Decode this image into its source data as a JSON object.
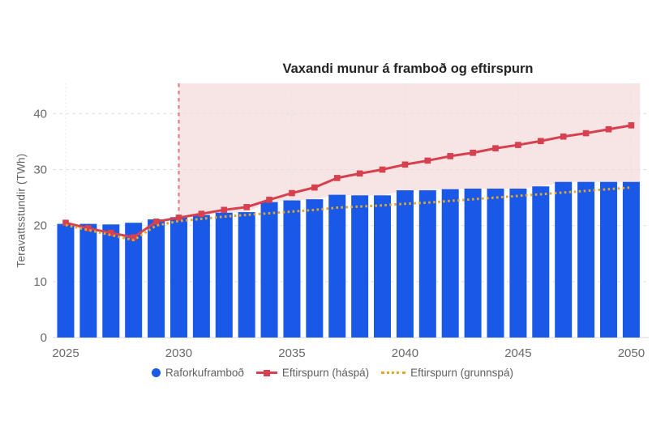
{
  "chart_data": {
    "type": "composite",
    "title": "Vaxandi munur á framboð og eftirspurn",
    "ylabel": "Teravattsstundir (TWh)",
    "xlabel": "",
    "categories": [
      2025,
      2026,
      2027,
      2028,
      2029,
      2030,
      2031,
      2032,
      2033,
      2034,
      2035,
      2036,
      2037,
      2038,
      2039,
      2040,
      2041,
      2042,
      2043,
      2044,
      2045,
      2046,
      2047,
      2048,
      2049,
      2050
    ],
    "series": [
      {
        "name": "Raforkuframboð",
        "type": "bar",
        "color": "#1a58e8",
        "values": [
          20.3,
          20.3,
          20.2,
          20.5,
          21.1,
          21.5,
          21.9,
          22.3,
          22.4,
          24.2,
          24.5,
          24.7,
          25.5,
          25.4,
          25.4,
          26.3,
          26.3,
          26.5,
          26.6,
          26.6,
          26.6,
          27.0,
          27.8,
          27.8,
          27.8,
          27.8
        ]
      },
      {
        "name": "Eftirspurn (háspá)",
        "type": "line",
        "marker": "square",
        "color": "#d6404f",
        "values": [
          20.5,
          19.5,
          18.7,
          17.9,
          20.7,
          21.4,
          22.1,
          22.8,
          23.3,
          24.6,
          25.8,
          26.8,
          28.5,
          29.3,
          30.0,
          30.9,
          31.6,
          32.4,
          33.0,
          33.8,
          34.4,
          35.1,
          35.9,
          36.5,
          37.2,
          37.9
        ]
      },
      {
        "name": "Eftirspurn (grunnspá)",
        "type": "line-dotted",
        "color": "#e2a72e",
        "values": [
          20.1,
          19.2,
          18.3,
          17.4,
          20.0,
          20.8,
          21.2,
          21.6,
          21.9,
          22.2,
          22.5,
          22.8,
          23.2,
          23.4,
          23.6,
          23.9,
          24.1,
          24.4,
          24.7,
          25.0,
          25.3,
          25.6,
          25.9,
          26.2,
          26.5,
          26.8
        ]
      }
    ],
    "yticks": [
      0,
      10,
      20,
      30,
      40
    ],
    "xticks": [
      2025,
      2030,
      2035,
      2040,
      2045,
      2050
    ],
    "ylim": [
      0,
      45.4
    ],
    "grid": true,
    "legend_position": "bottom-center",
    "annotations": {
      "shaded_region": {
        "from_year": 2030,
        "to_year": 2050,
        "color": "#f7e4e4"
      },
      "dashed_line": {
        "year": 2030,
        "color": "#e37f88"
      }
    },
    "axis_label_color": "#6a6a6a",
    "gridline_color": "#e4e0e0"
  },
  "legend": {
    "items": [
      {
        "label": "Raforkuframboð",
        "swatch": "circle"
      },
      {
        "label": "Eftirspurn (háspá)",
        "swatch": "line-square"
      },
      {
        "label": "Eftirspurn (grunnspá)",
        "swatch": "dotted-line"
      }
    ]
  }
}
